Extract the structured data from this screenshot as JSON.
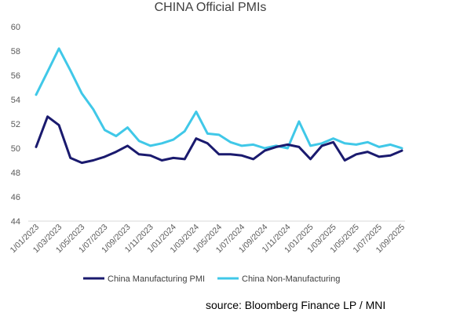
{
  "chart_data": {
    "type": "line",
    "title": "CHINA Official PMIs",
    "ylim": [
      44,
      60
    ],
    "y_ticks": [
      44,
      46,
      48,
      50,
      52,
      54,
      56,
      58,
      60
    ],
    "grid": false,
    "legend_position": "bottom",
    "x": [
      "1/01/2023",
      "1/02/2023",
      "1/03/2023",
      "1/04/2023",
      "1/05/2023",
      "1/06/2023",
      "1/07/2023",
      "1/08/2023",
      "1/09/2023",
      "1/10/2023",
      "1/11/2023",
      "1/12/2023",
      "1/01/2024",
      "1/02/2024",
      "1/03/2024",
      "1/04/2024",
      "1/05/2024",
      "1/06/2024",
      "1/07/2024",
      "1/08/2024",
      "1/09/2024",
      "1/10/2024",
      "1/11/2024",
      "1/12/2024",
      "1/01/2025",
      "1/02/2025",
      "1/03/2025",
      "1/04/2025",
      "1/05/2025",
      "1/06/2025",
      "1/07/2025",
      "1/08/2025",
      "1/09/2025"
    ],
    "x_tick_labels": [
      "1/01/2023",
      "1/03/2023",
      "1/05/2023",
      "1/07/2023",
      "1/09/2023",
      "1/11/2023",
      "1/01/2024",
      "1/03/2024",
      "1/05/2024",
      "1/07/2024",
      "1/09/2024",
      "1/11/2024",
      "1/01/2025",
      "1/03/2025",
      "1/05/2025",
      "1/07/2025",
      "1/09/2025"
    ],
    "series": [
      {
        "name": "China Manufacturing PMI",
        "color": "#1a1a6e",
        "values": [
          50.1,
          52.6,
          51.9,
          49.2,
          48.8,
          49.0,
          49.3,
          49.7,
          50.2,
          49.5,
          49.4,
          49.0,
          49.2,
          49.1,
          50.8,
          50.4,
          49.5,
          49.5,
          49.4,
          49.1,
          49.8,
          50.1,
          50.3,
          50.1,
          49.1,
          50.2,
          50.5,
          49.0,
          49.5,
          49.7,
          49.3,
          49.4,
          49.8
        ]
      },
      {
        "name": "China Non-Manufacturing",
        "color": "#40c8e8",
        "values": [
          54.4,
          56.3,
          58.2,
          56.4,
          54.5,
          53.2,
          51.5,
          51.0,
          51.7,
          50.6,
          50.2,
          50.4,
          50.7,
          51.4,
          53.0,
          51.2,
          51.1,
          50.5,
          50.2,
          50.3,
          50.0,
          50.2,
          50.0,
          52.2,
          50.2,
          50.4,
          50.8,
          50.4,
          50.3,
          50.5,
          50.1,
          50.3,
          50.0
        ]
      }
    ]
  },
  "footer": {
    "source": "source: Bloomberg Finance LP / MNI"
  }
}
